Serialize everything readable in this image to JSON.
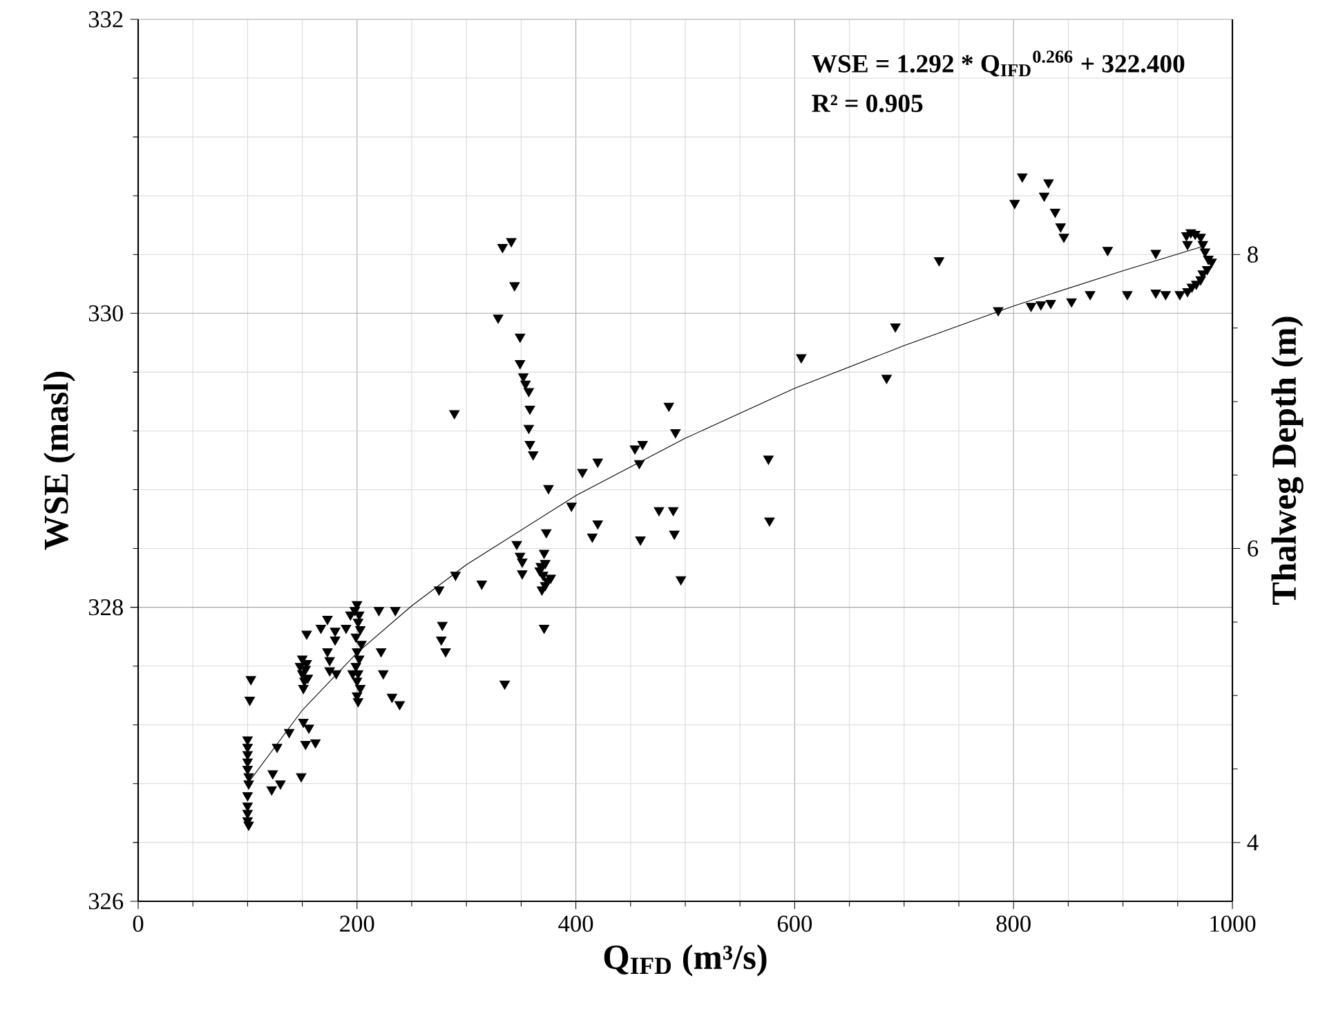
{
  "chart_data": {
    "type": "scatter",
    "xlabel": "Q$_{IFD}$ (m³/s)",
    "ylabel": "WSE (masl)",
    "y2label": "Thalweg Depth (m)",
    "annotations": [
      "WSE = 1.292 * Q$_{IFD}$$^{0.266}$ + 322.400",
      "R² = 0.905"
    ],
    "xlim": [
      0,
      1000
    ],
    "xticks": [
      0,
      200,
      400,
      600,
      800,
      1000
    ],
    "ylim": [
      326,
      332
    ],
    "yticks": [
      326,
      328,
      330,
      332
    ],
    "y2lim": [
      3.6,
      9.6
    ],
    "y2ticks": [
      4,
      6,
      8
    ],
    "grid": true,
    "series": [
      {
        "color": "#000000",
        "marker": "triangle",
        "x": [
          100,
          100,
          100,
          100,
          100,
          101,
          101,
          100,
          100,
          100,
          100,
          101,
          103,
          102,
          123,
          122,
          130,
          127,
          138,
          149,
          151,
          156,
          153,
          162,
          148,
          150,
          152,
          153,
          155,
          151,
          154,
          150,
          154,
          167,
          173,
          180,
          180,
          173,
          175,
          175,
          181,
          190,
          194,
          200,
          198,
          202,
          201,
          203,
          199,
          204,
          200,
          202,
          199,
          201,
          200,
          203,
          200,
          201,
          196,
          220,
          235,
          222,
          224,
          232,
          239,
          333,
          341,
          344,
          329,
          349,
          349,
          352,
          354,
          357,
          358,
          357,
          358,
          361,
          289,
          375,
          396,
          406,
          420,
          454,
          461,
          458,
          485,
          491,
          373,
          420,
          415,
          459,
          476,
          489,
          490,
          496,
          290,
          275,
          314,
          346,
          349,
          351,
          351,
          371,
          367,
          372,
          370,
          374,
          372,
          368,
          377,
          369,
          371,
          278,
          277,
          281,
          335,
          576,
          577,
          606,
          732,
          692,
          684,
          808,
          801,
          832,
          828,
          838,
          843,
          846,
          886,
          930,
          786,
          816,
          825,
          834,
          853,
          870,
          904,
          930,
          939,
          952,
          958,
          962,
          966,
          959,
          971,
          973,
          975,
          978,
          981,
          977,
          973,
          971,
          967,
          963,
          959
        ],
        "values": [
          327.1,
          327.05,
          327.0,
          326.95,
          326.9,
          326.85,
          326.8,
          326.72,
          326.65,
          326.6,
          326.55,
          326.52,
          327.51,
          327.37,
          326.87,
          326.76,
          326.8,
          327.05,
          327.15,
          326.85,
          327.22,
          327.18,
          327.07,
          327.08,
          327.6,
          327.55,
          327.5,
          327.58,
          327.52,
          327.45,
          327.62,
          327.65,
          327.82,
          327.86,
          327.92,
          327.84,
          327.78,
          327.7,
          327.64,
          327.57,
          327.55,
          327.86,
          327.95,
          328.02,
          327.98,
          327.95,
          327.9,
          327.85,
          327.8,
          327.75,
          327.7,
          327.65,
          327.6,
          327.55,
          327.5,
          327.45,
          327.4,
          327.36,
          327.55,
          327.98,
          327.98,
          327.7,
          327.55,
          327.39,
          327.34,
          330.45,
          330.49,
          330.19,
          329.97,
          329.84,
          329.66,
          329.57,
          329.52,
          329.47,
          329.35,
          329.22,
          329.11,
          329.04,
          329.32,
          328.81,
          328.69,
          328.92,
          328.99,
          329.08,
          329.11,
          328.98,
          329.37,
          329.19,
          328.51,
          328.57,
          328.48,
          328.46,
          328.66,
          328.66,
          328.5,
          328.19,
          328.22,
          328.12,
          328.16,
          328.43,
          328.35,
          328.31,
          328.23,
          328.37,
          328.25,
          328.3,
          328.22,
          328.18,
          328.15,
          328.28,
          328.2,
          328.12,
          327.86,
          327.88,
          327.78,
          327.7,
          327.48,
          329.01,
          328.59,
          329.7,
          330.36,
          329.91,
          329.56,
          330.93,
          330.75,
          330.89,
          330.8,
          330.69,
          330.59,
          330.52,
          330.43,
          330.41,
          330.02,
          330.05,
          330.06,
          330.07,
          330.08,
          330.13,
          330.13,
          330.14,
          330.13,
          330.13,
          330.53,
          330.55,
          330.54,
          330.47,
          330.52,
          330.47,
          330.42,
          330.37,
          330.35,
          330.3,
          330.27,
          330.23,
          330.2,
          330.18,
          330.15
        ]
      },
      {
        "type": "line",
        "color": "#000000",
        "marker": "none",
        "line_style": "solid",
        "x": [
          100,
          150,
          200,
          250,
          300,
          400,
          500,
          600,
          700,
          800,
          900,
          975
        ],
        "values": [
          326.8,
          327.3,
          327.69,
          328.01,
          328.29,
          328.76,
          329.15,
          329.49,
          329.78,
          330.05,
          330.29,
          330.46
        ]
      }
    ]
  }
}
